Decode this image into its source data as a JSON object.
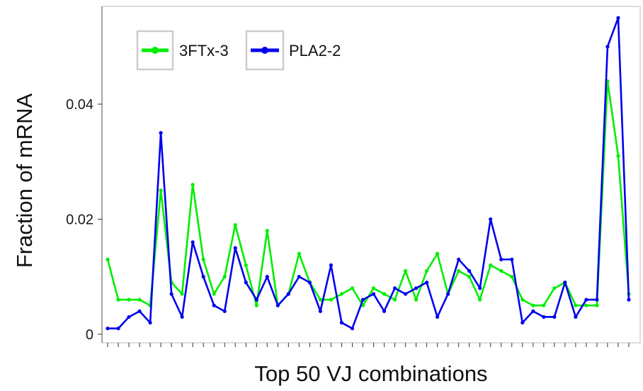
{
  "chart_data": {
    "type": "line",
    "title": "",
    "xlabel": "Top 50 VJ combinations",
    "ylabel": "Fraction of mRNA",
    "ylim": [
      -0.0015,
      0.057
    ],
    "yticks": [
      {
        "value": 0,
        "label": "0"
      },
      {
        "value": 0.02,
        "label": "0.02"
      },
      {
        "value": 0.04,
        "label": "0.04"
      }
    ],
    "x_count": 50,
    "x_tick_labels_shown": false,
    "grid": false,
    "legend_position": "top-left",
    "series": [
      {
        "name": "3FTx-3",
        "color": "#00ee00",
        "values": [
          0.013,
          0.006,
          0.006,
          0.006,
          0.005,
          0.025,
          0.009,
          0.007,
          0.026,
          0.013,
          0.007,
          0.01,
          0.019,
          0.012,
          0.005,
          0.018,
          0.005,
          0.007,
          0.014,
          0.009,
          0.006,
          0.006,
          0.007,
          0.008,
          0.005,
          0.008,
          0.007,
          0.006,
          0.011,
          0.006,
          0.011,
          0.014,
          0.007,
          0.011,
          0.01,
          0.006,
          0.012,
          0.011,
          0.01,
          0.006,
          0.005,
          0.005,
          0.008,
          0.009,
          0.005,
          0.005,
          0.005,
          0.044,
          0.031,
          0.007
        ]
      },
      {
        "name": "PLA2-2",
        "color": "#0000ee",
        "values": [
          0.001,
          0.001,
          0.003,
          0.004,
          0.002,
          0.035,
          0.007,
          0.003,
          0.016,
          0.01,
          0.005,
          0.004,
          0.015,
          0.009,
          0.006,
          0.01,
          0.005,
          0.007,
          0.01,
          0.009,
          0.004,
          0.012,
          0.002,
          0.001,
          0.006,
          0.007,
          0.004,
          0.008,
          0.007,
          0.008,
          0.009,
          0.003,
          0.007,
          0.013,
          0.011,
          0.008,
          0.02,
          0.013,
          0.013,
          0.002,
          0.004,
          0.003,
          0.003,
          0.009,
          0.003,
          0.006,
          0.006,
          0.05,
          0.055,
          0.006
        ]
      }
    ]
  }
}
